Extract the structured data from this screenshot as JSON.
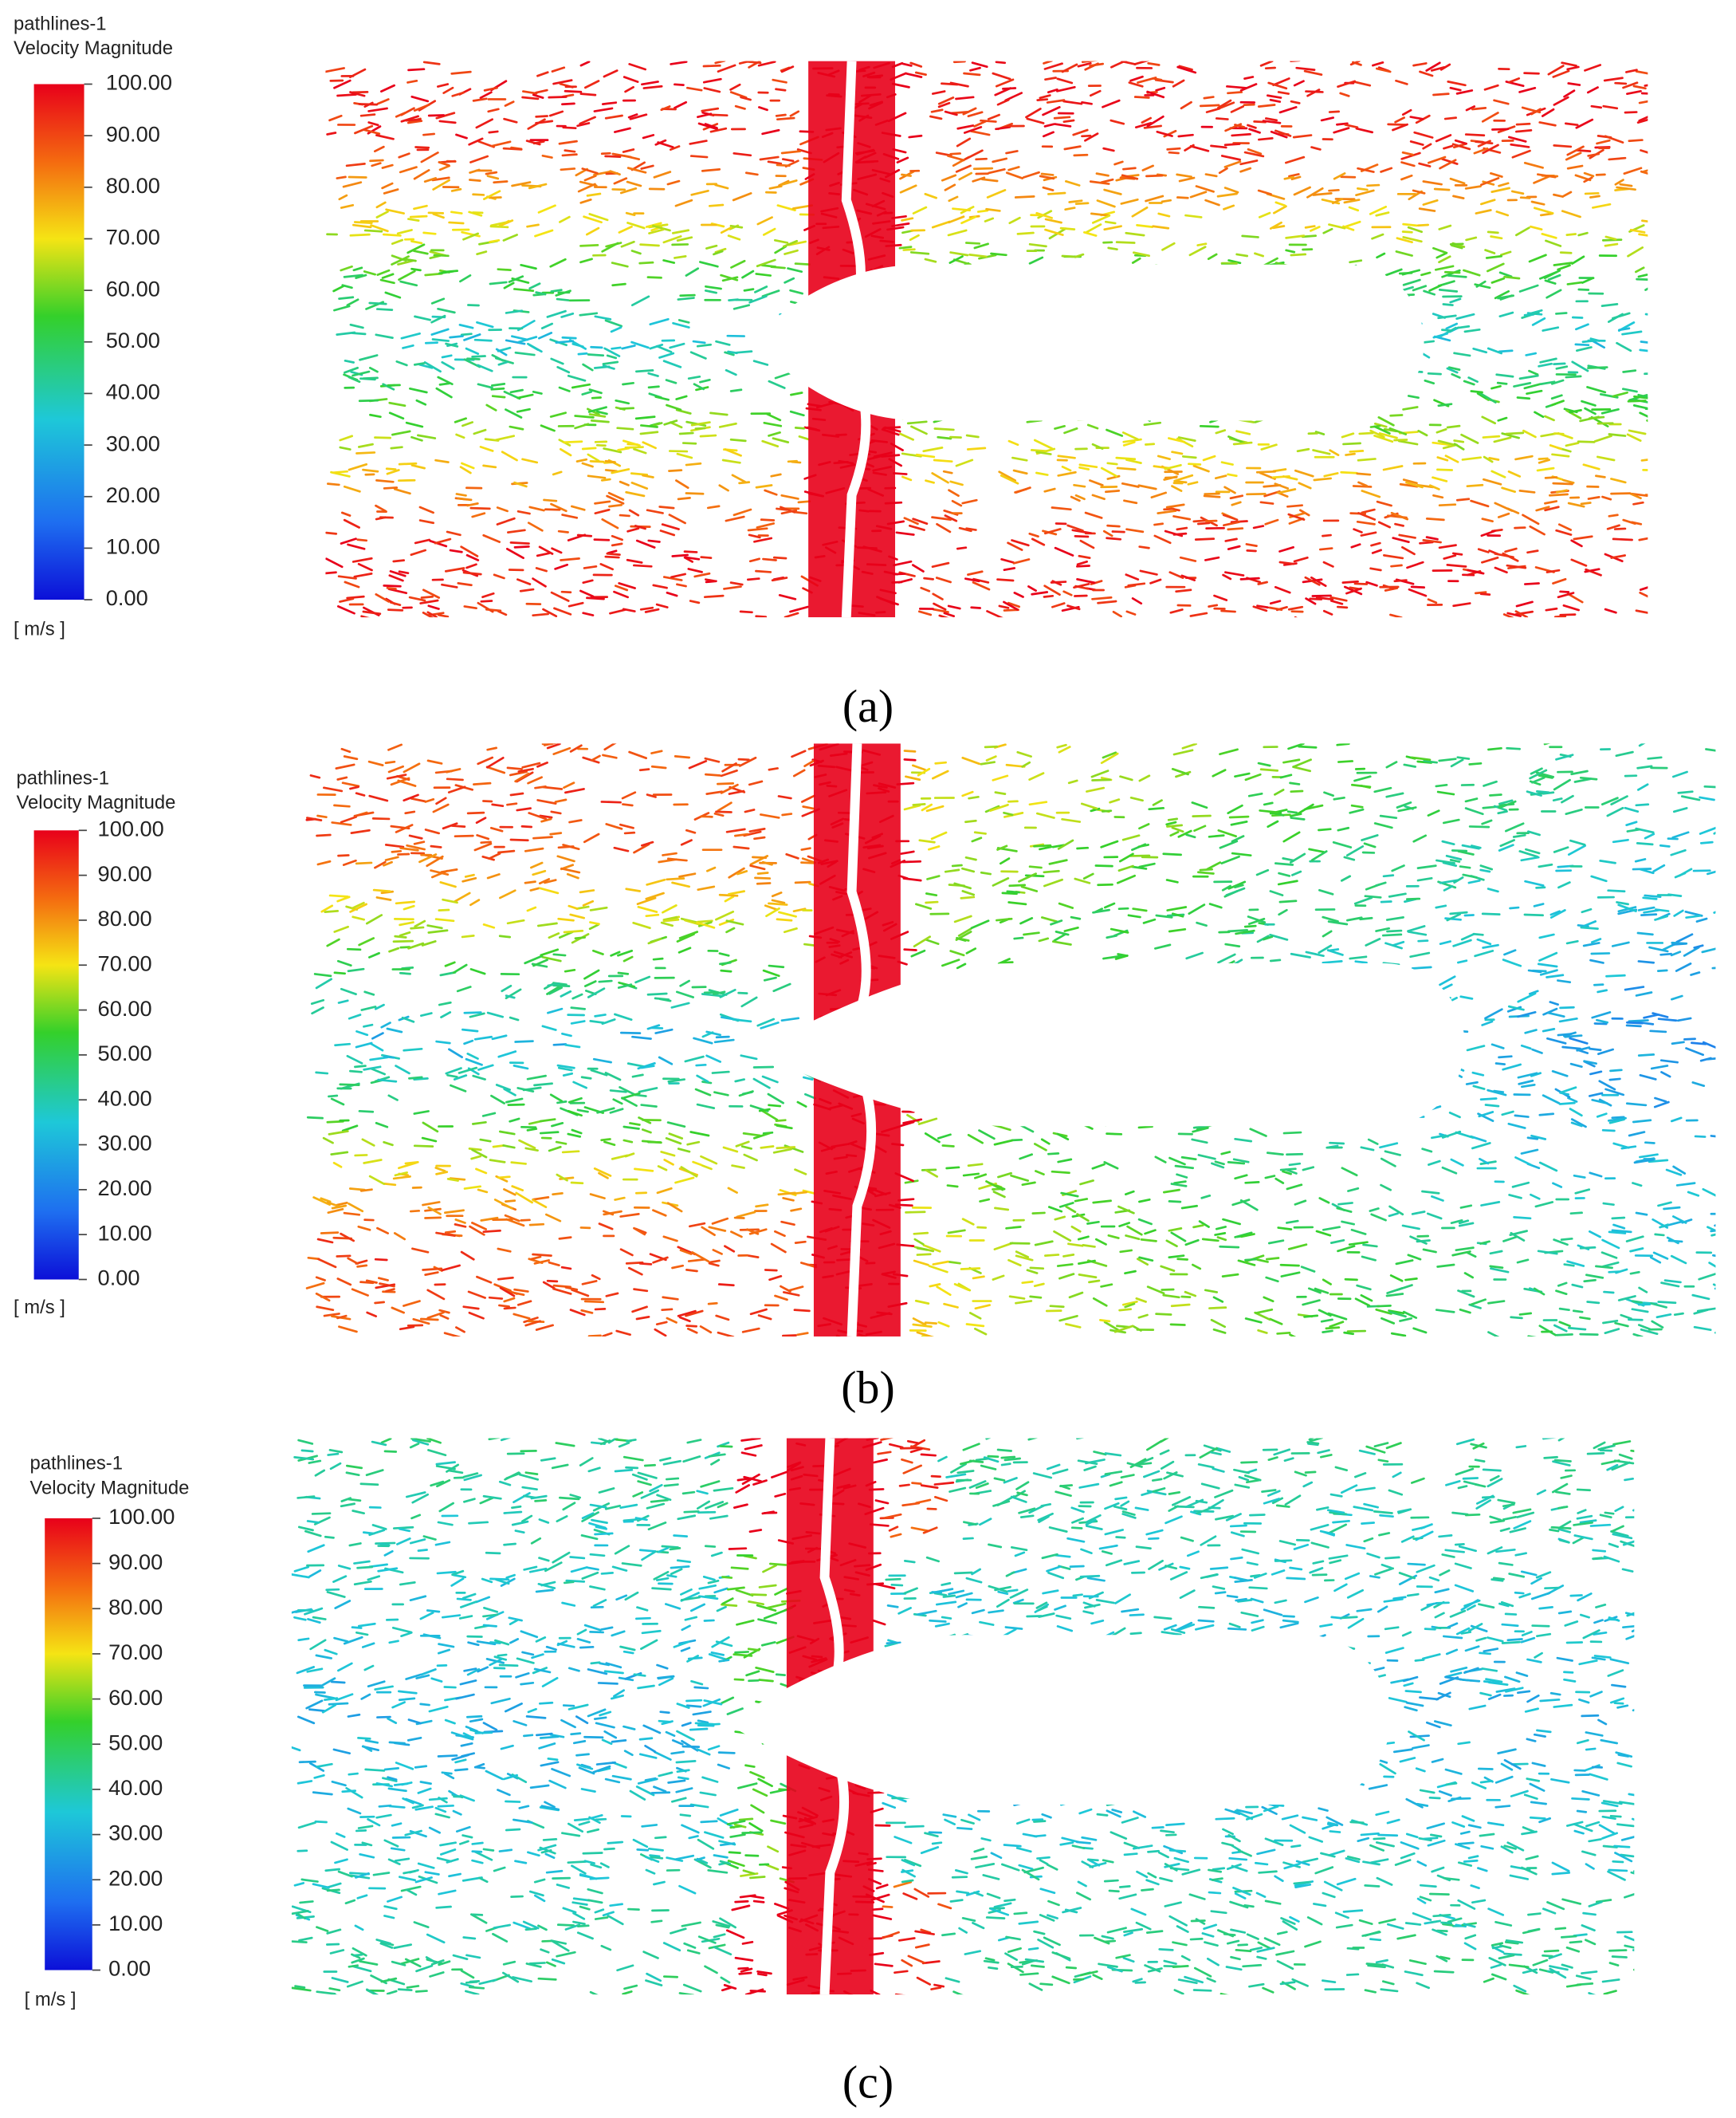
{
  "panels": [
    {
      "legend": {
        "title": "pathlines-1",
        "subtitle": "Velocity Magnitude",
        "ticks": [
          "100.00",
          "90.00",
          "80.00",
          "70.00",
          "60.00",
          "50.00",
          "40.00",
          "30.00",
          "20.00",
          "10.00",
          "0.00"
        ],
        "unit": "[ m/s ]"
      },
      "caption": "(a)"
    },
    {
      "legend": {
        "title": "pathlines-1",
        "subtitle": "Velocity Magnitude",
        "ticks": [
          "100.00",
          "90.00",
          "80.00",
          "70.00",
          "60.00",
          "50.00",
          "40.00",
          "30.00",
          "20.00",
          "10.00",
          "0.00"
        ],
        "unit": "[ m/s ]"
      },
      "caption": "(b)"
    },
    {
      "legend": {
        "title": "pathlines-1",
        "subtitle": "Velocity Magnitude",
        "ticks": [
          "100.00",
          "90.00",
          "80.00",
          "70.00",
          "60.00",
          "50.00",
          "40.00",
          "30.00",
          "20.00",
          "10.00",
          "0.00"
        ],
        "unit": "[ m/s ]"
      },
      "caption": "(c)"
    }
  ]
}
